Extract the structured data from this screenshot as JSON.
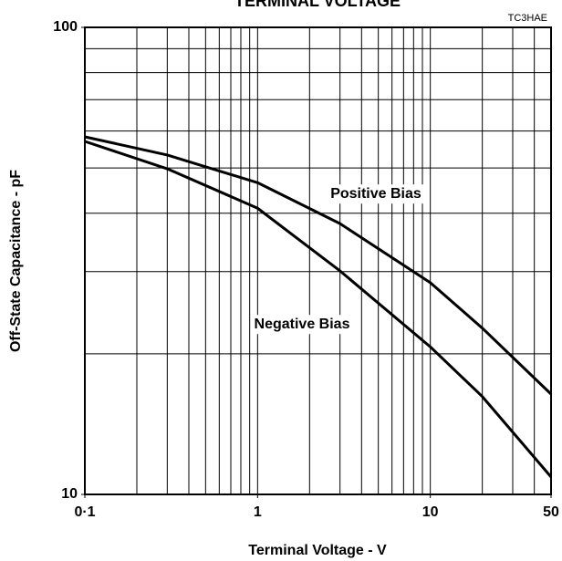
{
  "chart_data": {
    "type": "line",
    "title": "TERMINAL VOLTAGE",
    "code": "TC3HAE",
    "x_label": "Terminal Voltage  - V",
    "y_label": "Off-State Capacitance - pF",
    "xscale": "log",
    "yscale": "log",
    "xlim": [
      0.1,
      50
    ],
    "ylim": [
      10,
      100
    ],
    "xticks": [
      {
        "value": 0.1,
        "label": "0·1"
      },
      1,
      10,
      50
    ],
    "yticks": [
      10,
      100
    ],
    "xgrid": [
      0.2,
      0.3,
      0.4,
      0.5,
      0.6,
      0.7,
      0.8,
      0.9,
      1,
      2,
      3,
      4,
      5,
      6,
      7,
      8,
      9,
      10,
      20,
      30,
      40
    ],
    "ygrid": [
      20,
      30,
      40,
      50,
      60,
      70,
      80,
      90
    ],
    "x": [
      0.1,
      0.3,
      1,
      3,
      10,
      20,
      50
    ],
    "series": [
      {
        "name": "Positive Bias",
        "color": "#000000",
        "values": [
          58.3,
          53.3,
          46.5,
          38,
          28.4,
          22.7,
          16.4
        ]
      },
      {
        "name": "Negative Bias",
        "color": "#000000",
        "values": [
          57,
          49.8,
          41,
          30.1,
          20.7,
          16.2,
          10.9
        ]
      }
    ]
  }
}
